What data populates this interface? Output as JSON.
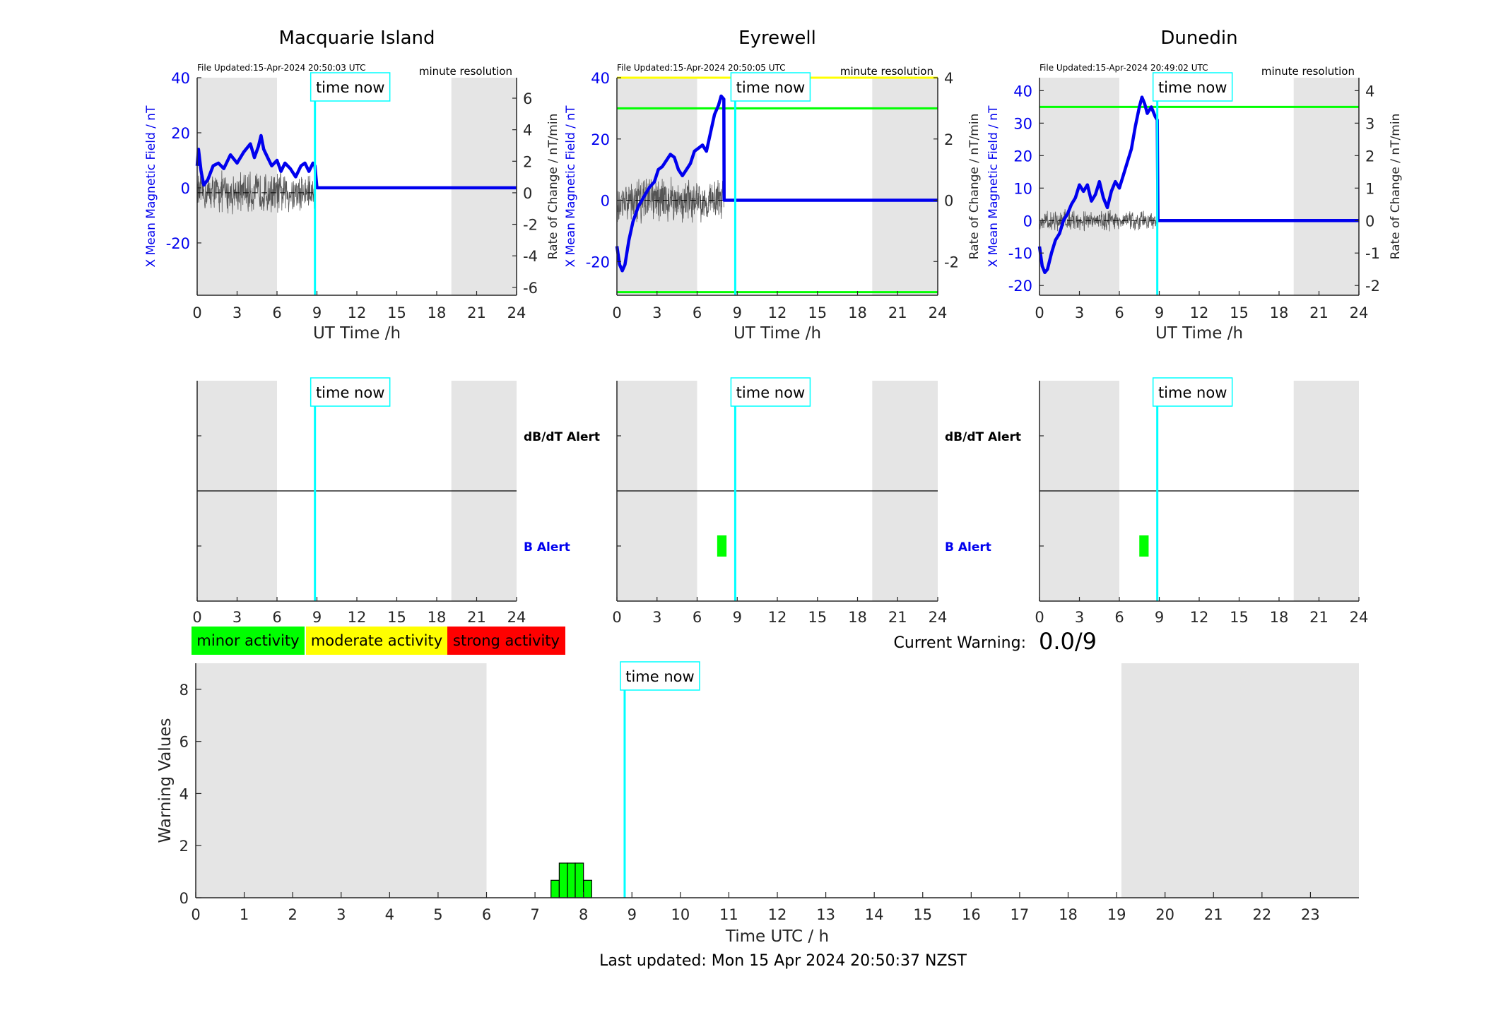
{
  "ui": {
    "time_now_label": "time now",
    "minute_resolution_label": "minute resolution",
    "dbdt_alert_label": "dB/dT Alert",
    "b_alert_label": "B Alert",
    "current_warning_label": "Current Warning:",
    "current_warning_value": "0.0/9",
    "last_updated": "Last updated: Mon 15 Apr 2024 20:50:37 NZST",
    "colors": {
      "field_line": "#0000ee",
      "rate_line": "#555555",
      "time_now": "#00ffff",
      "night_shade": "#e5e5e5",
      "minor": "#00ff00",
      "moderate": "#ffff00",
      "strong": "#ff0000"
    },
    "legend": [
      {
        "label": "minor activity",
        "color": "#00ff00"
      },
      {
        "label": "moderate activity",
        "color": "#ffff00"
      },
      {
        "label": "strong activity",
        "color": "#ff0000"
      }
    ]
  },
  "chart_data": [
    {
      "type": "line",
      "title": "Macquarie Island",
      "file_updated": "File Updated:15-Apr-2024 20:50:03 UTC",
      "xlabel": "UT Time /h",
      "ylabel": "X Mean Magnetic Field / nT",
      "ylabel_right": "Rate of Change / nT/min",
      "xlim": [
        0,
        24
      ],
      "ylim": [
        -39,
        40
      ],
      "ylim_right": [
        -6.5,
        7.3
      ],
      "xticks": [
        0,
        3,
        6,
        9,
        12,
        15,
        18,
        21,
        24
      ],
      "yticks": [
        -20,
        0,
        20,
        40
      ],
      "yticks_right": [
        -6,
        -4,
        -2,
        0,
        2,
        4,
        6
      ],
      "night_bands": [
        [
          0,
          6
        ],
        [
          19.1,
          24
        ]
      ],
      "time_now": 8.85,
      "thresholds": [],
      "series": [
        {
          "values_x": [
            0,
            0.1,
            0.3,
            0.5,
            0.8,
            1.2,
            1.6,
            2.0,
            2.5,
            3.0,
            3.5,
            4.0,
            4.3,
            4.6,
            4.8,
            5.0,
            5.3,
            5.6,
            6.0,
            6.3,
            6.6,
            7.0,
            7.4,
            7.8,
            8.1,
            8.4,
            8.7,
            8.85,
            9.0,
            12,
            24
          ],
          "values_y": [
            8,
            14,
            6,
            1,
            3,
            8,
            9,
            7,
            12,
            9,
            13,
            16,
            11,
            15,
            19,
            14,
            11,
            8,
            10,
            6,
            9,
            7,
            4,
            8,
            9,
            6,
            9,
            8,
            0,
            0,
            0
          ]
        },
        {
          "rate_amplitude": 1.5,
          "x_range": [
            0,
            8.85
          ]
        }
      ]
    },
    {
      "type": "line",
      "title": "Eyrewell",
      "file_updated": "File Updated:15-Apr-2024 20:50:05 UTC",
      "xlabel": "UT Time /h",
      "ylabel": "X Mean Magnetic Field / nT",
      "ylabel_right": "Rate of Change / nT/min",
      "xlim": [
        0,
        24
      ],
      "ylim": [
        -31,
        40
      ],
      "ylim_right": [
        -3.1,
        4.0
      ],
      "xticks": [
        0,
        3,
        6,
        9,
        12,
        15,
        18,
        21,
        24
      ],
      "yticks": [
        -20,
        0,
        20,
        40
      ],
      "yticks_right": [
        -2,
        0,
        2,
        4
      ],
      "night_bands": [
        [
          0,
          6
        ],
        [
          19.1,
          24
        ]
      ],
      "time_now": 8.85,
      "thresholds": [
        {
          "value": 40,
          "color": "#ffff00"
        },
        {
          "value": 30,
          "color": "#00ff00"
        },
        {
          "value": -30,
          "color": "#00ff00"
        }
      ],
      "series": [
        {
          "values_x": [
            0,
            0.2,
            0.4,
            0.6,
            0.9,
            1.2,
            1.6,
            2.0,
            2.4,
            2.8,
            3.1,
            3.4,
            3.7,
            4.0,
            4.3,
            4.6,
            4.9,
            5.2,
            5.5,
            5.8,
            6.1,
            6.4,
            6.7,
            7.0,
            7.3,
            7.6,
            7.8,
            8.0,
            8.02,
            9.0,
            24
          ],
          "values_y": [
            -15,
            -21,
            -23,
            -21,
            -13,
            -7,
            -2,
            1,
            4,
            6,
            10,
            11,
            13,
            15,
            14,
            10,
            8,
            10,
            12,
            16,
            17,
            18,
            16,
            22,
            28,
            31,
            34,
            33,
            0,
            0,
            0
          ]
        },
        {
          "rate_amplitude": 0.8,
          "x_range": [
            0,
            8.0
          ]
        }
      ]
    },
    {
      "type": "line",
      "title": "Dunedin",
      "file_updated": "File Updated:15-Apr-2024 20:49:02 UTC",
      "xlabel": "UT Time /h",
      "ylabel": "X Mean Magnetic Field / nT",
      "ylabel_right": "Rate of Change / nT/min",
      "xlim": [
        0,
        24
      ],
      "ylim": [
        -23,
        44
      ],
      "ylim_right": [
        -2.3,
        4.4
      ],
      "xticks": [
        0,
        3,
        6,
        9,
        12,
        15,
        18,
        21,
        24
      ],
      "yticks": [
        -20,
        -10,
        0,
        10,
        20,
        30,
        40
      ],
      "yticks_right": [
        -2,
        -1,
        0,
        1,
        2,
        3,
        4
      ],
      "night_bands": [
        [
          0,
          6
        ],
        [
          19.1,
          24
        ]
      ],
      "time_now": 8.85,
      "thresholds": [
        {
          "value": 35,
          "color": "#00ff00"
        }
      ],
      "series": [
        {
          "values_x": [
            0,
            0.2,
            0.4,
            0.6,
            0.9,
            1.2,
            1.5,
            1.8,
            2.1,
            2.4,
            2.7,
            3.0,
            3.3,
            3.6,
            3.9,
            4.2,
            4.5,
            4.8,
            5.1,
            5.4,
            5.7,
            6.0,
            6.3,
            6.6,
            6.9,
            7.2,
            7.5,
            7.7,
            7.9,
            8.1,
            8.4,
            8.7,
            8.85,
            8.9,
            24
          ],
          "values_y": [
            -8,
            -14,
            -16,
            -15,
            -10,
            -6,
            -4,
            0,
            2,
            5,
            7,
            11,
            9,
            11,
            6,
            8,
            12,
            7,
            4,
            9,
            12,
            10,
            14,
            18,
            22,
            29,
            35,
            38,
            36,
            33,
            35,
            32,
            31,
            0,
            0
          ]
        },
        {
          "rate_amplitude": 0.35,
          "x_range": [
            0,
            8.85
          ]
        }
      ]
    },
    {
      "type": "bar",
      "title": "",
      "ylabel_top": "dB/dT Alert",
      "ylabel_bottom": "B Alert",
      "xlim": [
        0,
        24
      ],
      "xticks": [
        0,
        3,
        6,
        9,
        12,
        15,
        18,
        21,
        24
      ],
      "night_bands": [
        [
          0,
          6
        ],
        [
          19.1,
          24
        ]
      ],
      "time_now": 8.85,
      "alerts": []
    },
    {
      "type": "bar",
      "title": "",
      "ylabel_top": "dB/dT Alert",
      "ylabel_bottom": "B Alert",
      "xlim": [
        0,
        24
      ],
      "xticks": [
        0,
        3,
        6,
        9,
        12,
        15,
        18,
        21,
        24
      ],
      "night_bands": [
        [
          0,
          6
        ],
        [
          19.1,
          24
        ]
      ],
      "time_now": 8.85,
      "alerts": [
        {
          "row": "B Alert",
          "x_start": 7.5,
          "x_end": 8.2,
          "level": "minor",
          "color": "#00ff00"
        }
      ]
    },
    {
      "type": "bar",
      "title": "",
      "ylabel_top": "dB/dT Alert",
      "ylabel_bottom": "B Alert",
      "xlim": [
        0,
        24
      ],
      "xticks": [
        0,
        3,
        6,
        9,
        12,
        15,
        18,
        21,
        24
      ],
      "night_bands": [
        [
          0,
          6
        ],
        [
          19.1,
          24
        ]
      ],
      "time_now": 8.85,
      "alerts": [
        {
          "row": "B Alert",
          "x_start": 7.5,
          "x_end": 8.2,
          "level": "minor",
          "color": "#00ff00"
        }
      ]
    },
    {
      "type": "bar",
      "title": "",
      "xlabel": "Time UTC / h",
      "ylabel": "Warning Values",
      "xlim": [
        0,
        24
      ],
      "ylim": [
        0,
        9
      ],
      "xticks": [
        0,
        1,
        2,
        3,
        4,
        5,
        6,
        7,
        8,
        9,
        10,
        11,
        12,
        13,
        14,
        15,
        16,
        17,
        18,
        19,
        20,
        21,
        22,
        23
      ],
      "yticks": [
        0,
        2,
        4,
        6,
        8
      ],
      "night_bands": [
        [
          0,
          6
        ],
        [
          19.1,
          24
        ]
      ],
      "time_now": 8.85,
      "bars": [
        {
          "x_start": 7.33,
          "x_end": 7.5,
          "value": 0.67
        },
        {
          "x_start": 7.5,
          "x_end": 7.67,
          "value": 1.33
        },
        {
          "x_start": 7.67,
          "x_end": 7.83,
          "value": 1.33
        },
        {
          "x_start": 7.83,
          "x_end": 8.0,
          "value": 1.33
        },
        {
          "x_start": 8.0,
          "x_end": 8.17,
          "value": 0.67
        }
      ]
    }
  ]
}
